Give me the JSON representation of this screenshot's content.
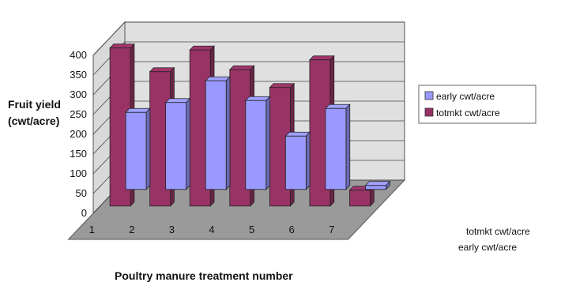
{
  "chart_data": {
    "type": "bar",
    "style": "3d-clustered-depth",
    "categories": [
      "1",
      "2",
      "3",
      "4",
      "5",
      "6",
      "7"
    ],
    "series": [
      {
        "name": "early cwt/acre",
        "values": [
          195,
          220,
          275,
          225,
          135,
          205,
          10
        ],
        "color": "#9999FF"
      },
      {
        "name": "totmkt cwt/acre",
        "values": [
          400,
          340,
          395,
          345,
          300,
          370,
          40
        ],
        "color": "#993366"
      }
    ],
    "ylabel_lines": [
      "Fruit yield",
      "(cwt/acre)"
    ],
    "xlabel": "Poultry manure treatment number",
    "yticks": [
      "0",
      "50",
      "100",
      "150",
      "200",
      "250",
      "300",
      "350",
      "400"
    ],
    "ylim": [
      0,
      400
    ],
    "depth_labels": [
      "totmkt cwt/acre",
      "early cwt/acre"
    ],
    "legend_position": "right",
    "grid": true
  }
}
